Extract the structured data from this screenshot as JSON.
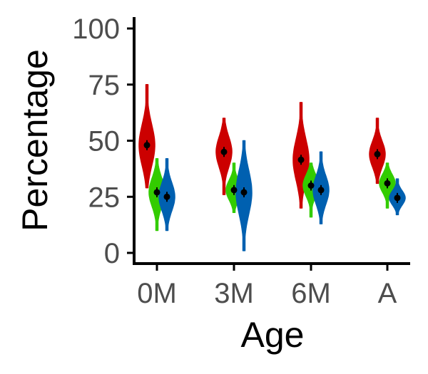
{
  "chart_data": {
    "type": "violin",
    "xlabel": "Age",
    "ylabel": "Percentage",
    "ylim": [
      0,
      100
    ],
    "yticks": [
      0,
      25,
      50,
      75,
      100
    ],
    "categories": [
      "0M",
      "3M",
      "6M",
      "A"
    ],
    "grid": false,
    "legend": "none",
    "series": [
      {
        "color": "#cc0000",
        "means": [
          48,
          45,
          41.5,
          44
        ],
        "ranges": [
          [
            29,
            75
          ],
          [
            26,
            60
          ],
          [
            20,
            67
          ],
          [
            31,
            60
          ]
        ]
      },
      {
        "color": "#33cc00",
        "means": [
          27,
          28,
          30,
          31
        ],
        "ranges": [
          [
            10,
            42
          ],
          [
            18,
            40
          ],
          [
            16,
            40
          ],
          [
            20,
            40
          ]
        ]
      },
      {
        "color": "#0060b0",
        "means": [
          25,
          27,
          28,
          24.5
        ],
        "ranges": [
          [
            10,
            42
          ],
          [
            1,
            50
          ],
          [
            13,
            45
          ],
          [
            17,
            33
          ]
        ]
      }
    ]
  }
}
